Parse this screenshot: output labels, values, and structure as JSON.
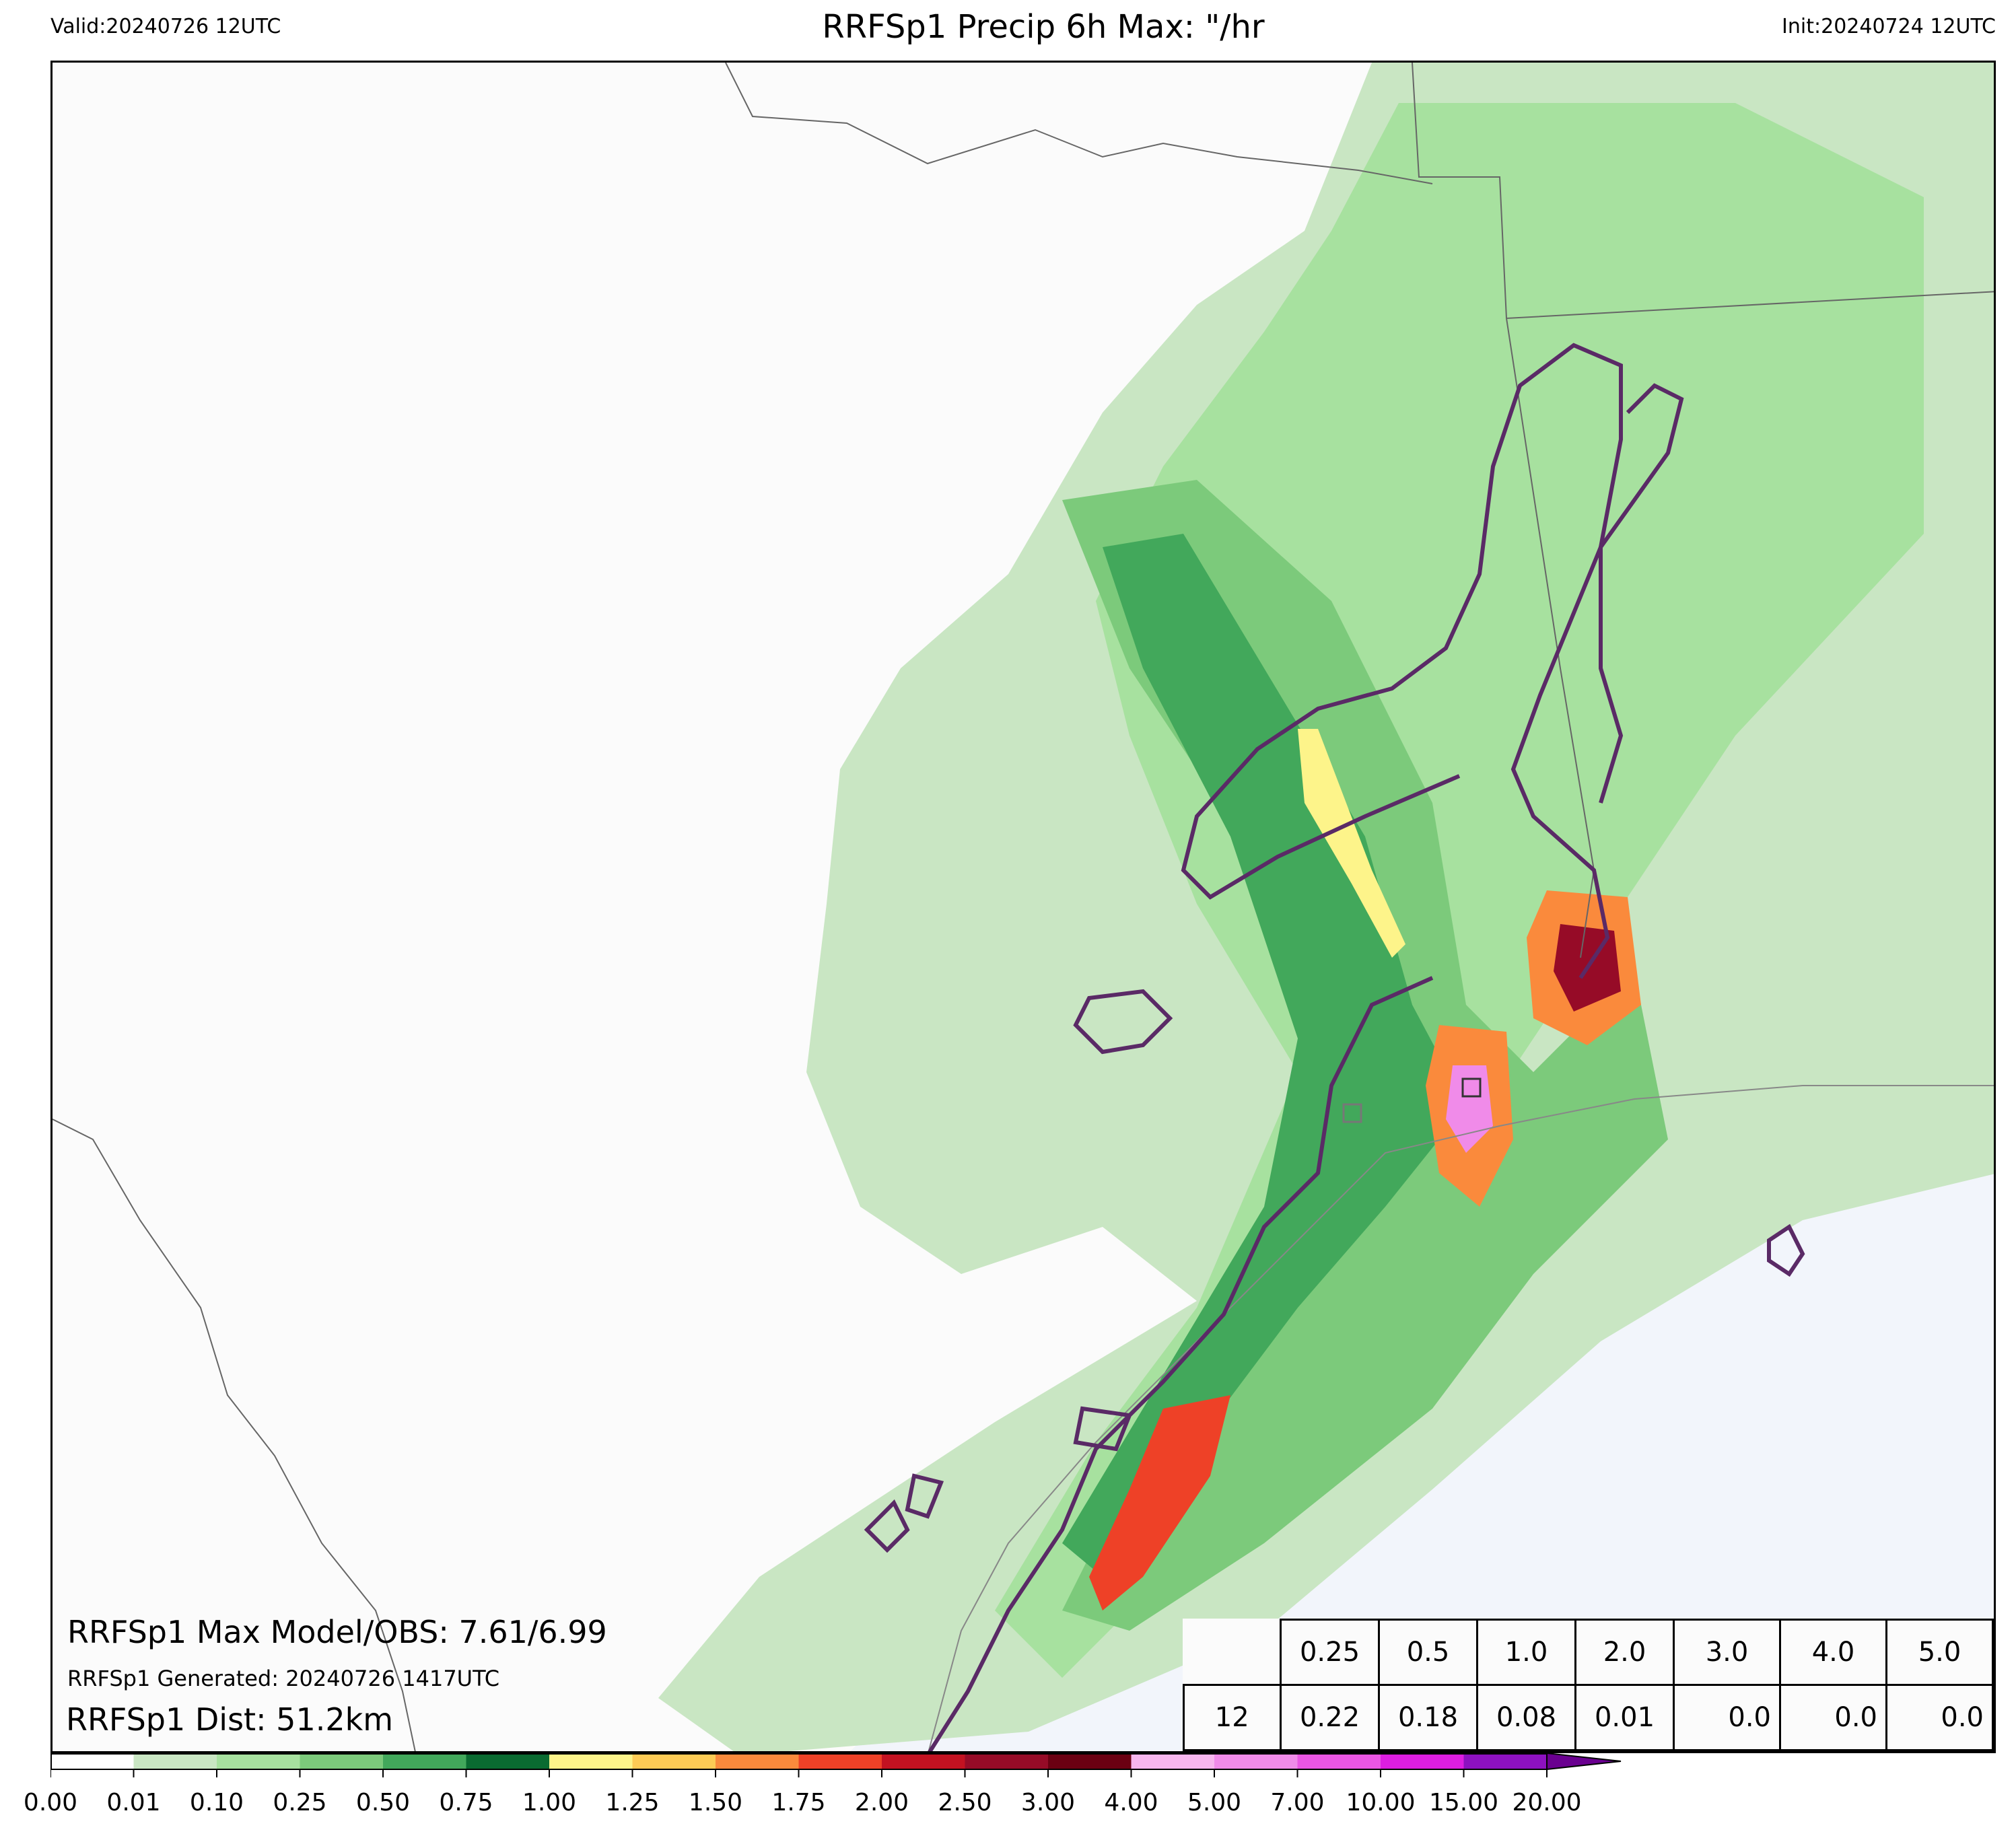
{
  "header": {
    "valid": "Valid:20240726 12UTC",
    "title": "RRFSp1 Precip 6h Max: \"/hr",
    "init": "Init:20240724 12UTC"
  },
  "annotations": {
    "max_stats": "RRFSp1 Max Model/OBS: 7.61/6.99",
    "generated": "RRFSp1 Generated: 20240726 1417UTC",
    "dist": "RRFSp1 Dist: 51.2km"
  },
  "stats_table": {
    "thresholds": [
      "0.25",
      "0.5",
      "1.0",
      "2.0",
      "3.0",
      "4.0",
      "5.0"
    ],
    "row_label": "12",
    "values": [
      "0.22",
      "0.18",
      "0.08",
      "0.01",
      "0.0",
      "0.0",
      "0.0"
    ]
  },
  "colorbar": {
    "levels": [
      "0.00",
      "0.01",
      "0.10",
      "0.25",
      "0.50",
      "0.75",
      "1.00",
      "1.25",
      "1.50",
      "1.75",
      "2.00",
      "2.50",
      "3.00",
      "4.00",
      "5.00",
      "7.00",
      "10.00",
      "15.00",
      "20.00"
    ],
    "colors": [
      "#ffffff",
      "#c9e6c3",
      "#a7e19f",
      "#7cca7b",
      "#42a85b",
      "#0a6b31",
      "#fdf48a",
      "#fdcb55",
      "#fa8a3c",
      "#ee4127",
      "#c31221",
      "#960b27",
      "#6b0012",
      "#f7b6ee",
      "#f08be9",
      "#ea56e3",
      "#dd1ee0",
      "#8d11c0"
    ],
    "extend_color": "#6a0090"
  },
  "map_colors": {
    "ocean": "#f2f5fb",
    "land": "#fbfbfb",
    "contour_line": "#5a2a66",
    "boundary": "#666666"
  }
}
